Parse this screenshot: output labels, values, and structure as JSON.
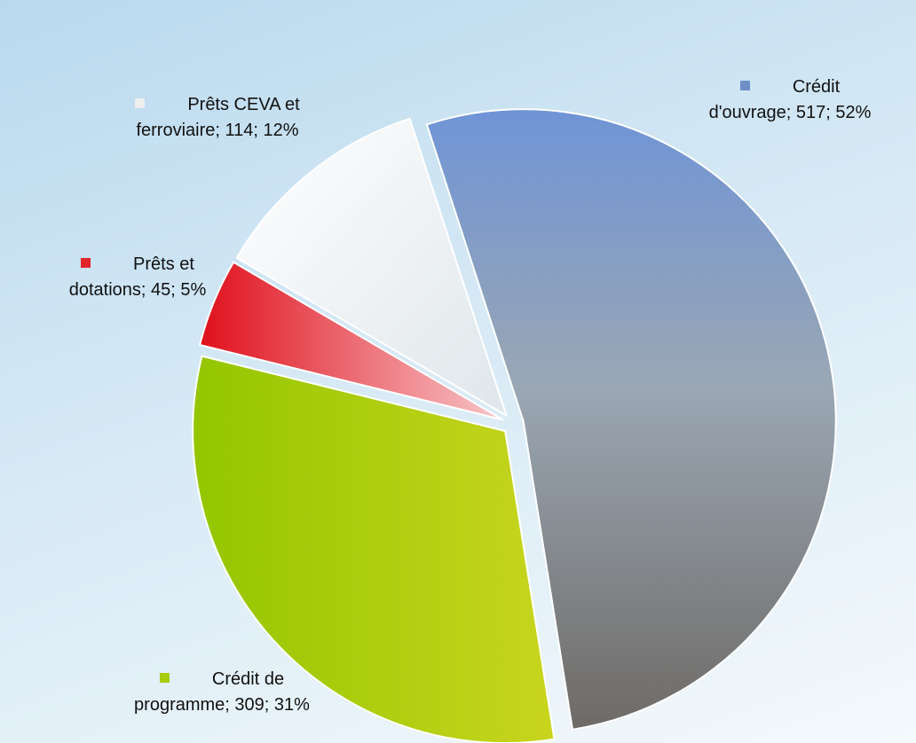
{
  "chart_data": {
    "type": "pie",
    "values": [
      517,
      309,
      45,
      114
    ],
    "value_labels": [
      "Crédit d'ouvrage; 517; 52%",
      "Crédit de programme; 309; 31%",
      "Prêts et dotations; 45; 5%",
      "Prêts CEVA et ferroviaire; 114; 12%"
    ],
    "colors": [
      "#6f8fc9",
      "#a6cc0a",
      "#e3232c",
      "#eeeeee"
    ]
  }
}
